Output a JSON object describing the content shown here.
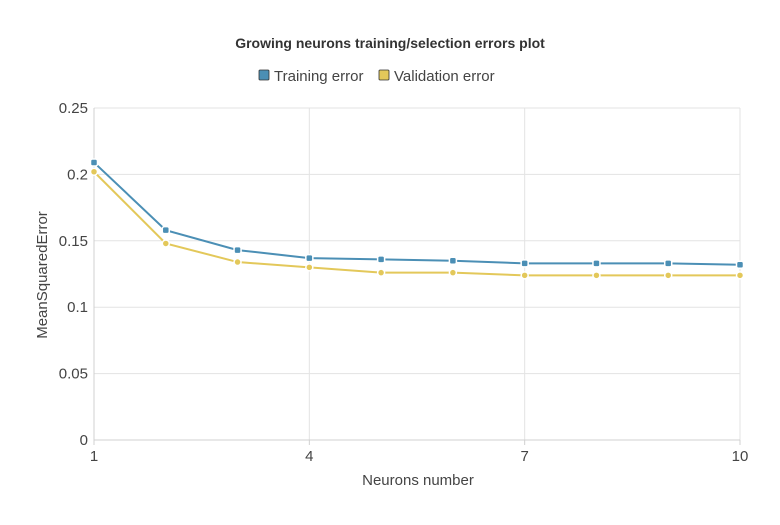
{
  "chart_data": {
    "type": "line",
    "title": "Growing neurons training/selection errors plot",
    "xlabel": "Neurons number",
    "ylabel": "MeanSquaredError",
    "x": [
      1,
      2,
      3,
      4,
      5,
      6,
      7,
      8,
      9,
      10
    ],
    "xlim": [
      1,
      10
    ],
    "ylim": [
      0,
      0.25
    ],
    "xticks": [
      "1",
      "4",
      "7",
      "10"
    ],
    "yticks": [
      "0",
      "0.05",
      "0.1",
      "0.15",
      "0.2",
      "0.25"
    ],
    "grid": true,
    "legend_position": "top-center",
    "series": [
      {
        "name": "Training error",
        "color": "#4b8fb5",
        "values": [
          0.209,
          0.158,
          0.143,
          0.137,
          0.136,
          0.135,
          0.133,
          0.133,
          0.133,
          0.132
        ]
      },
      {
        "name": "Validation error",
        "color": "#e3c85a",
        "values": [
          0.202,
          0.148,
          0.134,
          0.13,
          0.126,
          0.126,
          0.124,
          0.124,
          0.124,
          0.124
        ]
      }
    ]
  }
}
